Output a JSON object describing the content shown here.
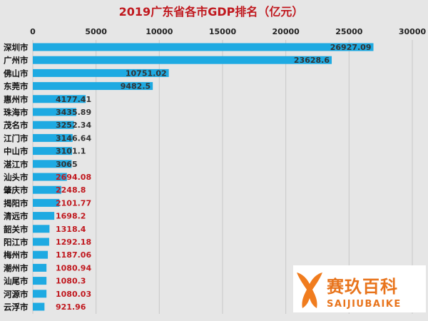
{
  "chart_data": {
    "type": "bar",
    "orientation": "horizontal",
    "title": "2019广东省各市GDP排名（亿元）",
    "xlabel": "",
    "ylabel": "",
    "xlim": [
      0,
      30000
    ],
    "x_ticks": [
      0,
      5000,
      10000,
      15000,
      20000,
      25000,
      30000
    ],
    "x_axis_position": "top",
    "grid": true,
    "categories": [
      "深圳市",
      "广州市",
      "佛山市",
      "东莞市",
      "惠州市",
      "珠海市",
      "茂名市",
      "江门市",
      "中山市",
      "湛江市",
      "汕头市",
      "肇庆市",
      "揭阳市",
      "清远市",
      "韶关市",
      "阳江市",
      "梅州市",
      "潮州市",
      "汕尾市",
      "河源市",
      "云浮市"
    ],
    "values": [
      26927.09,
      23628.6,
      10751.02,
      9482.5,
      4177.41,
      3435.89,
      3252.34,
      3146.64,
      3101.1,
      3065,
      2694.08,
      2248.8,
      2101.77,
      1698.2,
      1318.4,
      1292.18,
      1187.06,
      1080.94,
      1080.3,
      1080.03,
      921.96
    ],
    "value_labels": [
      "26927.09",
      "23628.6",
      "10751.02",
      "9482.5",
      "4177.41",
      "3435.89",
      "3252.34",
      "3146.64",
      "3101.1",
      "3065",
      "2694.08",
      "2248.8",
      "2101.77",
      "1698.2",
      "1318.4",
      "1292.18",
      "1187.06",
      "1080.94",
      "1080.3",
      "1080.03",
      "921.96"
    ],
    "colors": {
      "bar": "#1eaae2",
      "title": "#c0181e",
      "value_label_dark": "#333333",
      "value_label_red": "#c0181e",
      "grid": "#c8c8c8",
      "category_label": "#111111"
    }
  },
  "watermark": {
    "icon": "whale-tail-logo-icon",
    "text_cn": "赛玖百科",
    "text_en": "SAIJIUBAIKE",
    "colors": {
      "background": "#ffffff",
      "logo": "#f07c1e",
      "text": "#e8741c"
    }
  }
}
